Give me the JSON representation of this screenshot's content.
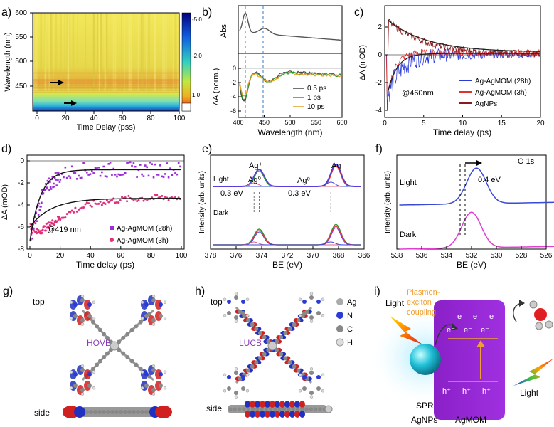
{
  "panel_labels": {
    "a": "a)",
    "b": "b)",
    "c": "c)",
    "d": "d)",
    "e": "e)",
    "f": "f)",
    "g": "g)",
    "h": "h)",
    "i": "i)"
  },
  "colors": {
    "blue": "#2b3bd6",
    "red": "#e03030",
    "darkred": "#8b1a1a",
    "purple": "#9b2fd6",
    "pink": "#e0307a",
    "green": "#2e9e3a",
    "orange": "#e8a020",
    "magenta": "#b02bd0"
  },
  "panel_a": {
    "ylabel": "Wavelength (nm)",
    "xlabel": "Time Delay (pss)",
    "yticks": [
      "600",
      "550",
      "500",
      "450"
    ],
    "xticks": [
      "0",
      "20",
      "40",
      "60",
      "80",
      "100"
    ],
    "colorbar_ticks": [
      "-5.0",
      "-2.0",
      "1.0"
    ]
  },
  "panel_b": {
    "top_ylabel": "Abs.",
    "bottom_ylabel": "ΔA (norm.)",
    "xlabel": "Wavelength (nm)",
    "xticks": [
      "400",
      "450",
      "500",
      "550",
      "600"
    ],
    "yticks": [
      "0",
      "-2",
      "-4",
      "-6"
    ],
    "legend": [
      "0.5 ps",
      "1 ps",
      "10 ps"
    ]
  },
  "panel_c": {
    "ylabel": "ΔA (mOD)",
    "xlabel": "Time delay (ps)",
    "xticks": [
      "0",
      "5",
      "10",
      "15",
      "20"
    ],
    "yticks": [
      "2",
      "0",
      "-2",
      "-4"
    ],
    "annotation": "@460nm",
    "legend": [
      "Ag-AgMOM (28h)",
      "Ag-AgMOM (3h)",
      "AgNPs"
    ]
  },
  "panel_d": {
    "ylabel": "ΔA (mOD)",
    "xlabel": "Time delay (ps)",
    "xticks": [
      "0",
      "20",
      "40",
      "60",
      "80",
      "100"
    ],
    "yticks": [
      "0",
      "-2",
      "-4",
      "-6",
      "-8"
    ],
    "annotation": "@419 nm",
    "legend": [
      "Ag-AgMOM (28h)",
      "Ag-AgMOM (3h)"
    ]
  },
  "panel_e": {
    "ylabel": "Intensity (arb. units)",
    "xlabel": "BE (eV)",
    "xticks": [
      "378",
      "376",
      "374",
      "372",
      "370",
      "368",
      "366"
    ],
    "labels": {
      "agplus1": "Ag⁺",
      "agplus2": "Ag⁺",
      "ag0_1": "Ag⁰",
      "ag0_2": "Ag⁰",
      "shift1": "0.3 eV",
      "shift2": "0.3 eV",
      "light": "Light",
      "dark": "Dark"
    }
  },
  "panel_f": {
    "ylabel": "Intensity (arb. units)",
    "xlabel": "BE (eV)",
    "xticks": [
      "538",
      "536",
      "534",
      "532",
      "530",
      "528",
      "526"
    ],
    "title": "O 1s",
    "shift": "0.4 eV",
    "light": "Light",
    "dark": "Dark"
  },
  "panel_g": {
    "top": "top",
    "side": "side",
    "name": "HOVB"
  },
  "panel_h": {
    "top": "top",
    "side": "side",
    "name": "LUCB",
    "legend": [
      "Ag",
      "N",
      "C",
      "H"
    ]
  },
  "panel_i": {
    "coupling": "Plasmon-\nexciton\ncoupling",
    "light_left": "Light",
    "light_right": "Light",
    "spr": "SPR",
    "agnps": "AgNPs",
    "agmom": "AgMOM",
    "electrons": [
      "e⁻",
      "e⁻",
      "e⁻",
      "e⁻",
      "e⁻",
      "e⁻"
    ],
    "holes": [
      "h⁺",
      "h⁺",
      "h⁺"
    ]
  }
}
